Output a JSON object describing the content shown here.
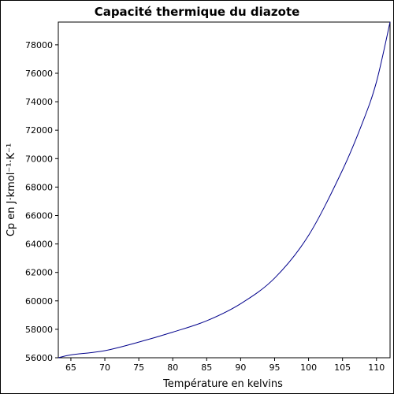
{
  "chart_data": {
    "type": "line",
    "title": "Capacité thermique du diazote",
    "xlabel": "Température en kelvins",
    "ylabel": "Cp en J·kmol⁻¹·K⁻¹",
    "xlim": [
      63.15,
      112
    ],
    "ylim": [
      56000,
      79600
    ],
    "xticks": [
      65,
      70,
      75,
      80,
      85,
      90,
      95,
      100,
      105,
      110
    ],
    "yticks": [
      56000,
      58000,
      60000,
      62000,
      64000,
      66000,
      68000,
      70000,
      72000,
      74000,
      76000,
      78000
    ],
    "grid": false,
    "line_color": "#00008b",
    "series": [
      {
        "x": [
          63.15,
          65,
          70,
          75,
          80,
          85,
          90,
          95,
          100,
          105,
          108,
          110,
          112
        ],
        "y": [
          56000,
          56200,
          56500,
          57100,
          57800,
          58600,
          59800,
          61600,
          64600,
          69200,
          72600,
          75400,
          79600
        ]
      }
    ]
  }
}
